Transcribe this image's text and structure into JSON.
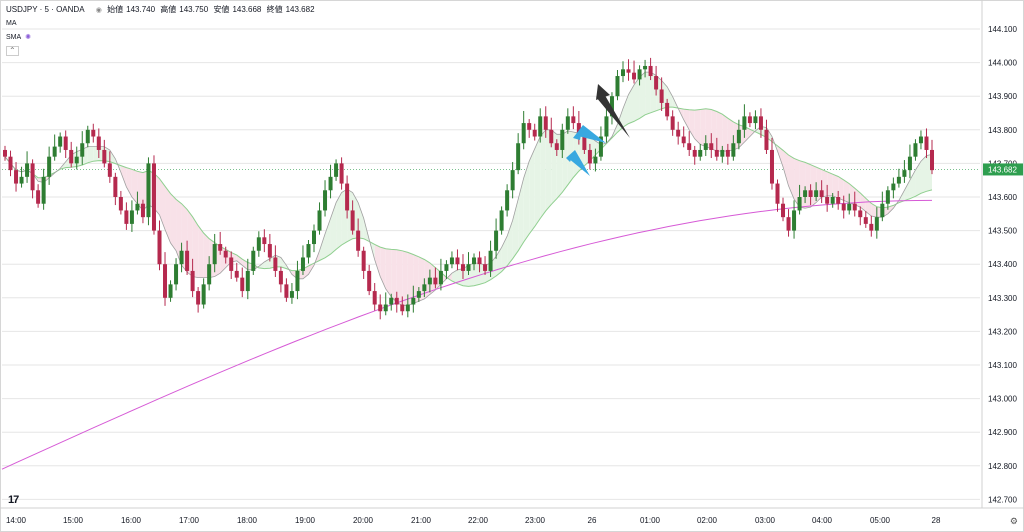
{
  "header": {
    "symbol": "USDJPY · 5 · OANDA",
    "open_label": "始値",
    "open": "143.740",
    "high_label": "高値",
    "high": "143.750",
    "low_label": "安値",
    "low": "143.668",
    "close_label": "終値",
    "close": "143.682"
  },
  "indicators": {
    "ma": "MA",
    "sma": "SMA"
  },
  "logo": "17",
  "colors": {
    "up": "#2e7d32",
    "down": "#b5294e",
    "sma_long": "#d65ad6",
    "ribbon_up": "#e6f4e6",
    "ribbon_down": "#f8e1e8",
    "arrow_blue": "#38a8e0",
    "arrow_dark": "#333333",
    "price_tag": "#2e9e4f"
  },
  "chart_data": {
    "type": "candlestick",
    "y_ticks": [
      "144.100",
      "144.000",
      "143.900",
      "143.800",
      "143.700",
      "143.600",
      "143.500",
      "143.400",
      "143.300",
      "143.200",
      "143.100",
      "143.000",
      "142.900",
      "142.800",
      "142.700"
    ],
    "x_ticks": [
      "14:00",
      "15:00",
      "16:00",
      "17:00",
      "18:00",
      "19:00",
      "20:00",
      "21:00",
      "22:00",
      "23:00",
      "26",
      "01:00",
      "02:00",
      "03:00",
      "04:00",
      "05:00",
      "28"
    ],
    "ylim": [
      142.685,
      144.135
    ],
    "current_price": "143.682",
    "candle_closes": [
      143.72,
      143.68,
      143.64,
      143.66,
      143.7,
      143.62,
      143.58,
      143.66,
      143.72,
      143.75,
      143.78,
      143.74,
      143.7,
      143.72,
      143.76,
      143.8,
      143.78,
      143.74,
      143.7,
      143.66,
      143.6,
      143.56,
      143.52,
      143.56,
      143.58,
      143.54,
      143.7,
      143.5,
      143.4,
      143.3,
      143.34,
      143.4,
      143.44,
      143.38,
      143.32,
      143.28,
      143.34,
      143.4,
      143.46,
      143.44,
      143.42,
      143.38,
      143.36,
      143.32,
      143.38,
      143.44,
      143.48,
      143.46,
      143.42,
      143.38,
      143.34,
      143.3,
      143.32,
      143.38,
      143.42,
      143.46,
      143.5,
      143.56,
      143.62,
      143.66,
      143.7,
      143.64,
      143.56,
      143.5,
      143.44,
      143.38,
      143.32,
      143.28,
      143.26,
      143.28,
      143.3,
      143.28,
      143.26,
      143.28,
      143.3,
      143.32,
      143.34,
      143.36,
      143.34,
      143.38,
      143.4,
      143.42,
      143.4,
      143.38,
      143.4,
      143.42,
      143.4,
      143.38,
      143.44,
      143.5,
      143.56,
      143.62,
      143.68,
      143.76,
      143.82,
      143.8,
      143.78,
      143.84,
      143.8,
      143.76,
      143.74,
      143.8,
      143.84,
      143.82,
      143.78,
      143.74,
      143.7,
      143.72,
      143.78,
      143.84,
      143.9,
      143.96,
      143.98,
      143.97,
      143.95,
      143.98,
      143.99,
      143.96,
      143.92,
      143.88,
      143.84,
      143.8,
      143.78,
      143.76,
      143.74,
      143.72,
      143.74,
      143.76,
      143.74,
      143.72,
      143.74,
      143.72,
      143.76,
      143.8,
      143.84,
      143.82,
      143.84,
      143.8,
      143.74,
      143.64,
      143.58,
      143.54,
      143.5,
      143.56,
      143.6,
      143.62,
      143.6,
      143.62,
      143.6,
      143.58,
      143.6,
      143.58,
      143.56,
      143.58,
      143.56,
      143.54,
      143.52,
      143.5,
      143.54,
      143.58,
      143.62,
      143.64,
      143.66,
      143.68,
      143.72,
      143.76,
      143.78,
      143.74,
      143.68
    ]
  }
}
